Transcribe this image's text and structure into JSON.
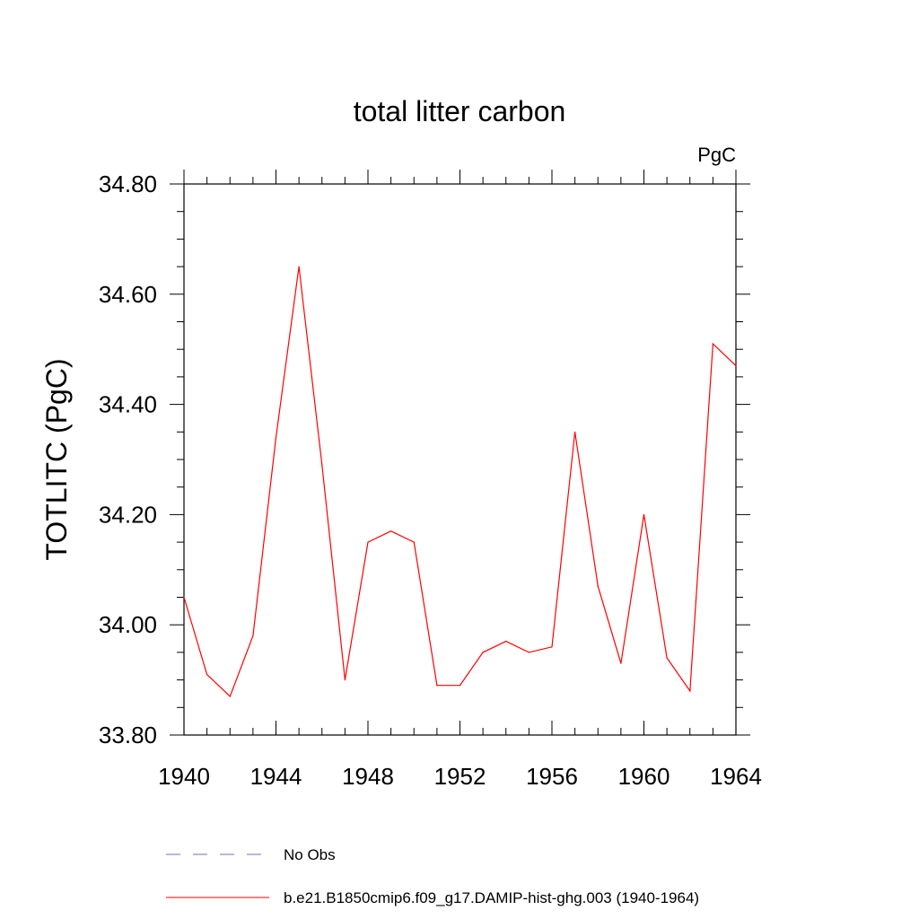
{
  "chart_data": {
    "type": "line",
    "title": "total litter carbon",
    "units": "PgC",
    "xlabel": "",
    "ylabel": "TOTLITC  (PgC)",
    "xlim": [
      1940,
      1964
    ],
    "ylim": [
      33.8,
      34.8
    ],
    "x_ticks": [
      "1940",
      "1944",
      "1948",
      "1952",
      "1956",
      "1960",
      "1964"
    ],
    "y_ticks": [
      "33.80",
      "34.00",
      "34.20",
      "34.40",
      "34.60",
      "34.80"
    ],
    "x": [
      1940,
      1941,
      1942,
      1943,
      1944,
      1945,
      1946,
      1947,
      1948,
      1949,
      1950,
      1951,
      1952,
      1953,
      1954,
      1955,
      1956,
      1957,
      1958,
      1959,
      1960,
      1961,
      1962,
      1963,
      1964
    ],
    "series": [
      {
        "name": "b.e21.B1850cmip6.f09_g17.DAMIP-hist-ghg.003 (1940-1964)",
        "color": "#ff0000",
        "values": [
          34.05,
          33.91,
          33.87,
          33.98,
          34.34,
          34.65,
          34.29,
          33.9,
          34.15,
          34.17,
          34.15,
          33.89,
          33.89,
          33.95,
          33.97,
          33.95,
          33.96,
          34.35,
          34.07,
          33.93,
          34.2,
          33.94,
          33.88,
          34.51,
          34.47
        ]
      }
    ],
    "legend": [
      {
        "label": "No Obs",
        "color": "#7b68c8",
        "style": "dashed"
      },
      {
        "label": "b.e21.B1850cmip6.f09_g17.DAMIP-hist-ghg.003 (1940-1964)",
        "color": "#ff0000",
        "style": "solid"
      }
    ],
    "legend_position": "bottom",
    "grid": false
  }
}
